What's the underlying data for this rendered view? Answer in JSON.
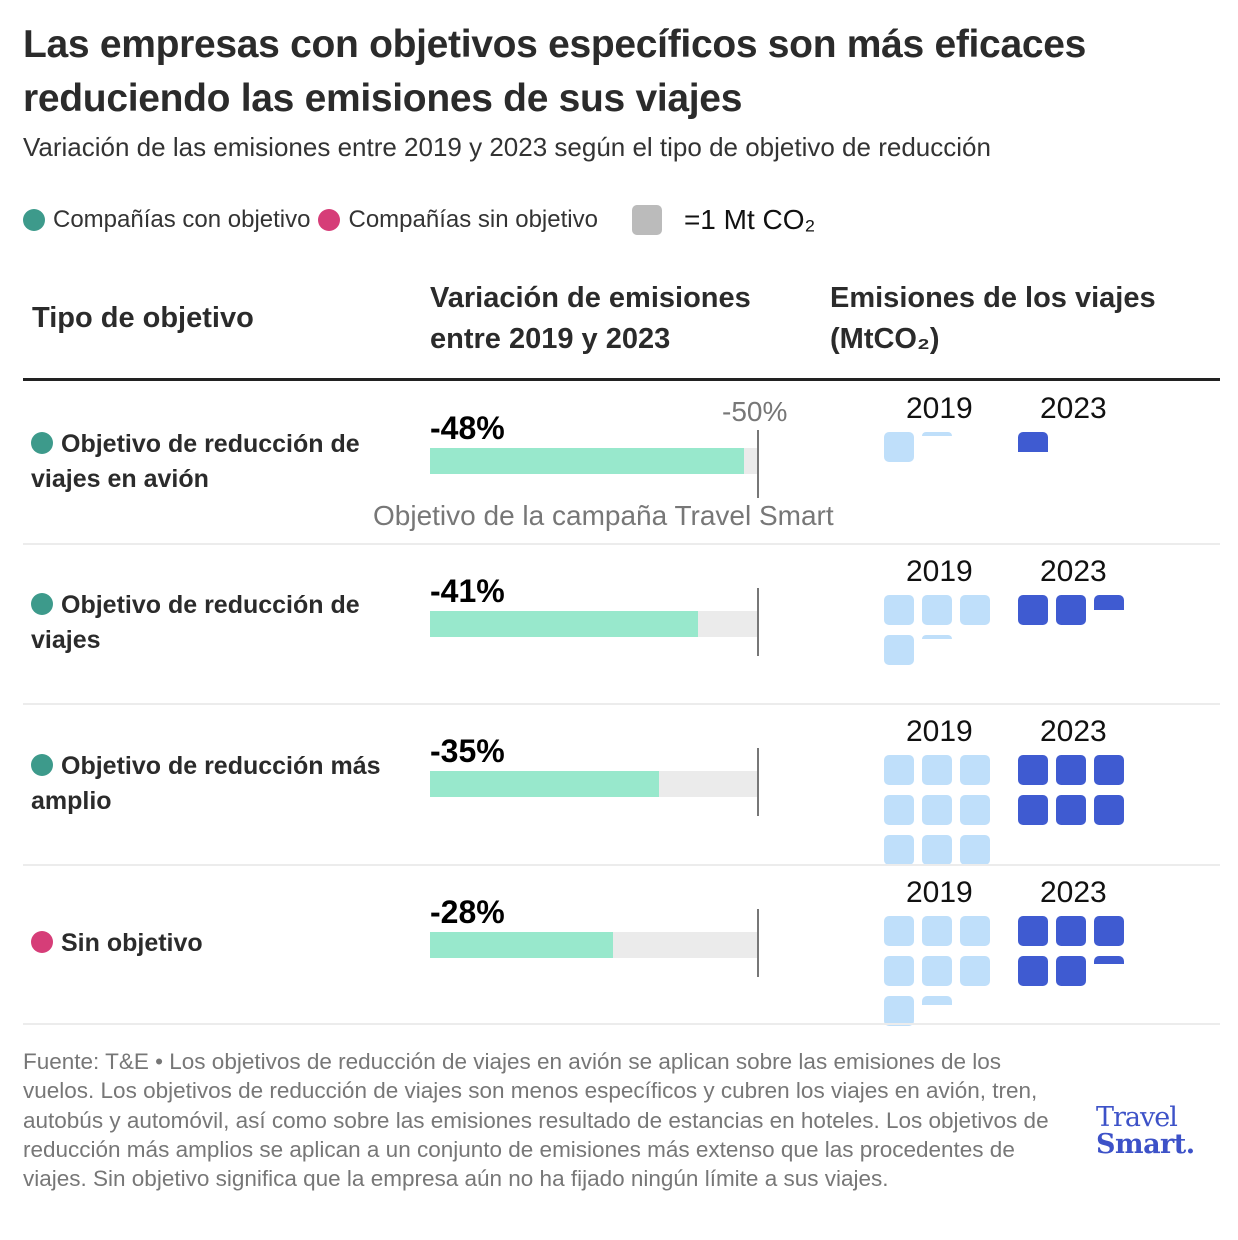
{
  "header": {
    "title": "Las empresas con objetivos específicos son más eficaces reduciendo las emisiones de sus viajes",
    "subtitle": "Variación de las emisiones entre 2019 y 2023 según el tipo de objetivo de reducción"
  },
  "legend": {
    "with_target": {
      "label": "Compañías con objetivo",
      "color": "#3d9a8b"
    },
    "without_target": {
      "label": "Compañías sin objetivo",
      "color": "#d63d78"
    },
    "unit_label": "=1 Mt CO₂",
    "unit_color": "#bbbbbb"
  },
  "columns": {
    "type": "Tipo de objetivo",
    "variation_line1": "Variación de emisiones",
    "variation_line2": "entre 2019 y 2023",
    "emissions_line1": "Emisiones de los viajes",
    "emissions_line2": "(MtCO₂)"
  },
  "reference": {
    "value_label": "-50%",
    "note": "Objetivo de la campaña Travel Smart"
  },
  "colors": {
    "bar_fill": "#98e8cc",
    "bar_track": "#ebebeb",
    "waffle_2019": "#bfdffa",
    "waffle_2023": "#3f5bd1"
  },
  "chart_data": {
    "type": "bar",
    "title": "Las empresas con objetivos específicos son más eficaces reduciendo las emisiones de sus viajes",
    "subtitle": "Variación de las emisiones entre 2019 y 2023 según el tipo de objetivo de reducción",
    "categories": [
      "Objetivo de reducción de viajes en avión",
      "Objetivo de reducción de viajes",
      "Objetivo de reducción más amplio",
      "Sin objetivo"
    ],
    "category_group": [
      "con objetivo",
      "con objetivo",
      "con objetivo",
      "sin objetivo"
    ],
    "series": [
      {
        "name": "Variación de emisiones entre 2019 y 2023 (%)",
        "values": [
          -48,
          -41,
          -35,
          -28
        ],
        "labels": [
          "-48%",
          "-41%",
          "-35%",
          "-28%"
        ]
      },
      {
        "name": "Emisiones 2019 (MtCO2)",
        "values": [
          1.15,
          4.1,
          9,
          7.3
        ]
      },
      {
        "name": "Emisiones 2023 (MtCO2)",
        "values": [
          0.65,
          2.5,
          6,
          5.25
        ]
      }
    ],
    "xlim": [
      0,
      -50
    ],
    "reference_line": {
      "value": -50,
      "label": "-50%",
      "annotation": "Objetivo de la campaña Travel Smart"
    },
    "waffle_unit": "1 Mt CO2",
    "waffle_years": [
      "2019",
      "2023"
    ],
    "legend": [
      "Compañías con objetivo",
      "Compañías sin objetivo",
      "=1 Mt CO2"
    ],
    "legend_position": "top-left",
    "grid": false
  },
  "footer": {
    "text": "Fuente: T&E • Los objetivos de reducción de viajes en avión se aplican sobre las emisiones de los vuelos. Los objetivos de reducción de viajes son menos específicos y cubren los viajes en avión, tren, autobús y automóvil, así como sobre las emisiones resultado de estancias en hoteles. Los objetivos de reducción más amplios se aplican a un conjunto de emisiones más extenso que las procedentes de viajes. Sin objetivo significa que la empresa aún no ha fijado ningún límite a sus viajes.",
    "logo_line1": "Travel",
    "logo_line2": "Smart."
  }
}
